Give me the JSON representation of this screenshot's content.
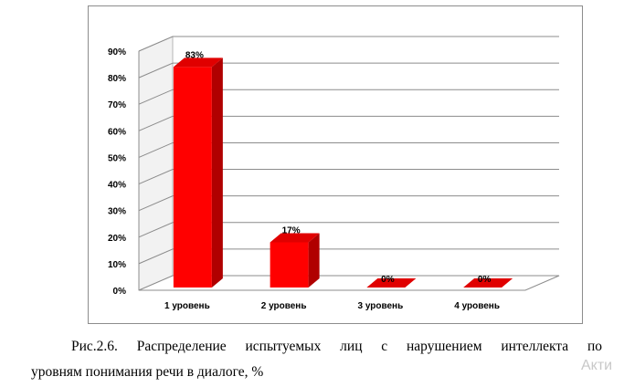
{
  "chart_data": {
    "type": "bar",
    "categories": [
      "1 уровень",
      "2 уровень",
      "3 уровень",
      "4 уровень"
    ],
    "values": [
      83,
      17,
      0,
      0
    ],
    "data_labels": [
      "83%",
      "17%",
      "0%",
      "0%"
    ],
    "ytick_labels": [
      "0%",
      "10%",
      "20%",
      "30%",
      "40%",
      "50%",
      "60%",
      "70%",
      "80%",
      "90%"
    ],
    "ylim": [
      0,
      90
    ],
    "grid": true,
    "legend": "none",
    "style": "3d",
    "bar_color": "#ff0000"
  },
  "caption": {
    "line1": "Рис.2.6. Распределение испытуемых лиц с нарушением интеллекта по",
    "line2": "уровням понимания речи в диалоге, %"
  },
  "watermark": "Акти"
}
